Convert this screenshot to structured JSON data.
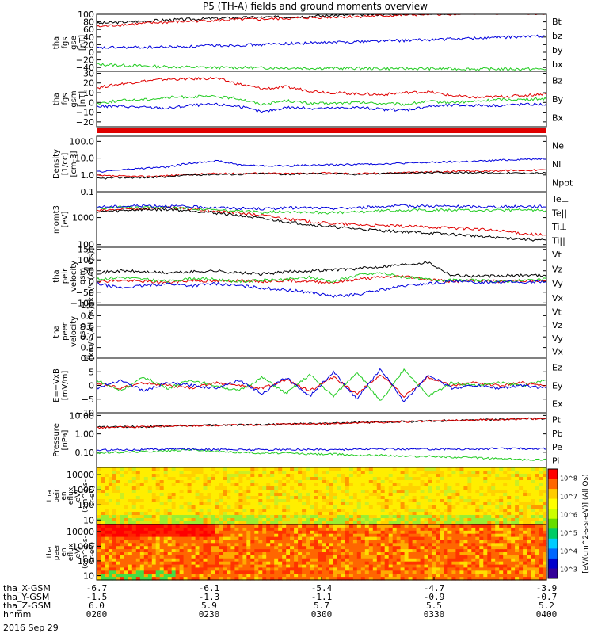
{
  "chart_data": {
    "type": "line",
    "title": "P5 (TH-A) fields and ground moments overview",
    "date": "2016 Sep 29",
    "colors": {
      "black": "#000000",
      "red": "#e00000",
      "green": "#22cc22",
      "blue": "#0000dd"
    },
    "panels": [
      {
        "id": "fgs_gse",
        "ylabel": [
          "tha",
          "fgs",
          "gse",
          "[nT]"
        ],
        "ylim": [
          -50,
          100
        ],
        "scale": "linear",
        "yticks": [
          -40,
          -20,
          0,
          20,
          40,
          60,
          80,
          100
        ],
        "yticklabels": [
          "−40",
          "−20",
          "0",
          "20",
          "40",
          "60",
          "80",
          "100"
        ],
        "series": [
          {
            "name": "Bt",
            "color": "black",
            "values": [
              76,
              79,
              82,
              85,
              87,
              89,
              91,
              92,
              93,
              95,
              97,
              99,
              100,
              101,
              102,
              103,
              104,
              105,
              106,
              106
            ]
          },
          {
            "name": "bz",
            "color": "red",
            "values": [
              67,
              72,
              76,
              79,
              82,
              84,
              86,
              87,
              89,
              91,
              93,
              94,
              96,
              98,
              100,
              101,
              102,
              102,
              102,
              102
            ]
          },
          {
            "name": "by",
            "color": "green",
            "values": [
              -32,
              -34,
              -36,
              -38,
              -39,
              -40,
              -40,
              -41,
              -41,
              -42,
              -42,
              -42,
              -43,
              -43,
              -43,
              -43,
              -44,
              -44,
              -44,
              -44
            ]
          },
          {
            "name": "bx",
            "color": "blue",
            "values": [
              11,
              13,
              13,
              14,
              15,
              18,
              19,
              20,
              23,
              24,
              26,
              28,
              30,
              31,
              33,
              35,
              37,
              39,
              41,
              43
            ]
          }
        ]
      },
      {
        "id": "fgs_gsm",
        "ylabel": [
          "tha",
          "fgs",
          "gsm",
          "[nT]"
        ],
        "ylim": [
          -25,
          32
        ],
        "scale": "linear",
        "yticks": [
          -20,
          -10,
          0,
          10,
          20,
          30
        ],
        "yticklabels": [
          "−20",
          "−10",
          "0",
          "10",
          "20",
          "30"
        ],
        "series": [
          {
            "name": "Bz",
            "color": "red",
            "values": [
              15,
              19,
              22,
              24,
              24,
              25,
              19,
              14,
              16,
              12,
              10,
              9,
              8,
              10,
              11,
              7,
              5,
              6,
              7,
              9
            ]
          },
          {
            "name": "By",
            "color": "green",
            "values": [
              -1,
              2,
              3,
              5,
              6,
              6,
              4,
              -2,
              2,
              -1,
              -1,
              0,
              -1,
              -2,
              1,
              0,
              1,
              3,
              3,
              4
            ]
          },
          {
            "name": "Bx",
            "color": "blue",
            "values": [
              -4,
              -4,
              -5,
              -6,
              -3,
              -2,
              -4,
              -10,
              -5,
              -6,
              -6,
              -5,
              -7,
              -8,
              -4,
              -3,
              -3,
              -3,
              -2,
              -2
            ]
          }
        ]
      },
      {
        "id": "density",
        "ylabel": [
          "Density",
          "[1/cc]",
          "[cm-3]"
        ],
        "ylim": [
          0.1,
          200
        ],
        "scale": "log",
        "yticks": [
          0.1,
          1,
          10,
          100
        ],
        "yticklabels": [
          "0.1",
          "1.0",
          "10.0",
          "100.0"
        ],
        "series": [
          {
            "name": "Ne",
            "color": "red",
            "values": [
              0.9,
              0.85,
              0.8,
              0.9,
              1.1,
              1.2,
              1.2,
              1.3,
              1.2,
              1.3,
              1.3,
              1.2,
              1.3,
              1.4,
              1.5,
              1.6,
              1.7,
              1.8,
              1.9,
              2.0
            ]
          },
          {
            "name": "Ni",
            "color": "black",
            "values": [
              0.6,
              0.7,
              0.7,
              0.8,
              1.0,
              1.1,
              1.1,
              1.2,
              1.1,
              1.2,
              1.2,
              1.1,
              1.2,
              1.3,
              1.4,
              1.4,
              1.4,
              1.3,
              1.3,
              1.3
            ]
          },
          {
            "name": "Npot",
            "color": "blue",
            "values": [
              1.5,
              2.0,
              2.5,
              3.0,
              5,
              7,
              4,
              3.5,
              3.5,
              3.8,
              4,
              4.3,
              4.6,
              5,
              5.5,
              6,
              6.5,
              7.5,
              8.5,
              9.5
            ]
          }
        ]
      },
      {
        "id": "mom_temp",
        "ylabel": [
          "momt3",
          "[eV]"
        ],
        "ylim": [
          80,
          9000
        ],
        "scale": "log",
        "yticks": [
          100,
          1000
        ],
        "yticklabels": [
          "100",
          "1000"
        ],
        "series": [
          {
            "name": "Te⊥",
            "color": "red",
            "values": [
              1800,
              2000,
              2200,
              2300,
              2100,
              1700,
              1500,
              1200,
              900,
              700,
              600,
              550,
              500,
              480,
              450,
              420,
              380,
              320,
              260,
              220
            ]
          },
          {
            "name": "Te||",
            "color": "black",
            "values": [
              1600,
              1800,
              2000,
              2000,
              1800,
              1500,
              1200,
              900,
              700,
              550,
              450,
              380,
              330,
              300,
              270,
              240,
              210,
              180,
              160,
              140
            ]
          },
          {
            "name": "Ti⊥",
            "color": "green",
            "values": [
              2300,
              2400,
              2500,
              2400,
              2200,
              1900,
              1700,
              1600,
              1700,
              1600,
              1500,
              1600,
              1800,
              1900,
              1900,
              1900,
              1850,
              1850,
              1900,
              1900
            ]
          },
          {
            "name": "Ti||",
            "color": "blue",
            "values": [
              2500,
              2600,
              2800,
              2700,
              2500,
              2400,
              2200,
              2100,
              2300,
              2300,
              2200,
              2300,
              2600,
              2700,
              2700,
              2600,
              2500,
              2500,
              2600,
              2600
            ]
          }
        ]
      },
      {
        "id": "peir_velocity",
        "ylabel": [
          "tha",
          "peir",
          "velocity",
          "gsm",
          "[km/s (All Qs)]"
        ],
        "ylim": [
          -110,
          160
        ],
        "scale": "linear",
        "yticks": [
          -100,
          -50,
          0,
          50,
          100,
          150
        ],
        "yticklabels": [
          "−100",
          "−50",
          "0",
          "50",
          "100",
          "150"
        ],
        "series": [
          {
            "name": "Vt",
            "color": "black",
            "values": [
              40,
              50,
              45,
              40,
              45,
              50,
              40,
              35,
              45,
              50,
              55,
              60,
              70,
              80,
              90,
              30,
              25,
              25,
              30,
              30
            ]
          },
          {
            "name": "Vz",
            "color": "red",
            "values": [
              0,
              5,
              0,
              -5,
              5,
              0,
              5,
              0,
              5,
              0,
              -5,
              10,
              20,
              25,
              10,
              0,
              5,
              0,
              5,
              0
            ]
          },
          {
            "name": "Vy",
            "color": "green",
            "values": [
              10,
              20,
              10,
              0,
              15,
              10,
              0,
              5,
              10,
              20,
              0,
              30,
              40,
              20,
              10,
              5,
              5,
              0,
              5,
              10
            ]
          },
          {
            "name": "Vx",
            "color": "blue",
            "values": [
              -10,
              -30,
              -20,
              -10,
              -20,
              -10,
              -20,
              -30,
              -40,
              -50,
              -70,
              -60,
              -40,
              -20,
              -10,
              0,
              -5,
              0,
              -5,
              0
            ]
          }
        ]
      },
      {
        "id": "peer_velocity",
        "ylabel": [
          "tha",
          "peer",
          "velocity",
          "gsm",
          "[km/s (All Qs)]"
        ],
        "ylim": [
          0,
          1
        ],
        "scale": "linear",
        "yticks": [
          0,
          0.2,
          0.4,
          0.6,
          0.8,
          1.0
        ],
        "yticklabels": [
          "0.0",
          "0.2",
          "0.4",
          "0.6",
          "0.8",
          "1.0"
        ],
        "series": [
          {
            "name": "Vt",
            "color": "black",
            "values": []
          },
          {
            "name": "Vz",
            "color": "red",
            "values": []
          },
          {
            "name": "Vy",
            "color": "green",
            "values": []
          },
          {
            "name": "Vx",
            "color": "blue",
            "values": []
          }
        ]
      },
      {
        "id": "efield",
        "ylabel": [
          "E=−VxB",
          "[mV/m]"
        ],
        "ylim": [
          -10,
          10
        ],
        "scale": "linear",
        "yticks": [
          -10,
          -5,
          0,
          5,
          10
        ],
        "yticklabels": [
          "−10",
          "−5",
          "0",
          "5",
          "10"
        ],
        "series": [
          {
            "name": "Ez",
            "color": "red",
            "values": [
              1,
              -1,
              1,
              0,
              -1,
              1,
              0,
              -1,
              2,
              -2,
              3,
              -3,
              4,
              -4,
              3,
              0,
              1,
              0,
              1,
              0
            ]
          },
          {
            "name": "Ey",
            "color": "green",
            "values": [
              2,
              -2,
              3,
              -1,
              2,
              0,
              -2,
              3,
              -3,
              4,
              -4,
              5,
              -6,
              6,
              -4,
              1,
              0,
              1,
              0,
              2
            ]
          },
          {
            "name": "Ex",
            "color": "blue",
            "values": [
              -1,
              2,
              -2,
              1,
              0,
              -1,
              2,
              -3,
              3,
              -4,
              5,
              -5,
              6,
              -6,
              4,
              -1,
              0,
              -1,
              0,
              -1
            ]
          }
        ]
      },
      {
        "id": "pressure",
        "ylabel": [
          "Pressure",
          "[nPa]"
        ],
        "ylim": [
          0.015,
          14
        ],
        "scale": "log",
        "yticks": [
          0.1,
          1,
          10
        ],
        "yticklabels": [
          "0.10",
          "1.00",
          "10.00"
        ],
        "series": [
          {
            "name": "Pt",
            "color": "black",
            "values": [
              2.3,
              2.4,
              2.5,
              2.7,
              2.9,
              3.0,
              3.1,
              3.2,
              3.4,
              3.6,
              3.8,
              4.1,
              4.4,
              4.7,
              5.0,
              5.4,
              5.8,
              6.2,
              6.6,
              7.0
            ]
          },
          {
            "name": "Pb",
            "color": "red",
            "values": [
              2.2,
              2.3,
              2.4,
              2.6,
              2.8,
              2.9,
              3.0,
              3.1,
              3.3,
              3.5,
              3.7,
              4.0,
              4.3,
              4.6,
              4.9,
              5.3,
              5.7,
              6.1,
              6.5,
              6.9
            ]
          },
          {
            "name": "Pe",
            "color": "green",
            "values": [
              0.09,
              0.1,
              0.11,
              0.12,
              0.14,
              0.11,
              0.1,
              0.09,
              0.09,
              0.08,
              0.08,
              0.07,
              0.07,
              0.06,
              0.06,
              0.055,
              0.05,
              0.045,
              0.04,
              0.04
            ]
          },
          {
            "name": "Pi",
            "color": "blue",
            "values": [
              0.13,
              0.14,
              0.14,
              0.15,
              0.15,
              0.14,
              0.14,
              0.14,
              0.14,
              0.14,
              0.14,
              0.15,
              0.15,
              0.15,
              0.15,
              0.15,
              0.15,
              0.16,
              0.16,
              0.16
            ]
          }
        ]
      }
    ],
    "spectrograms": [
      {
        "id": "peir_spec",
        "ylabel": [
          "tha",
          "peir",
          "en",
          "eflux",
          "eV/",
          "(cm^2-s-",
          "sr-eV)"
        ],
        "ylim": [
          5,
          30000
        ],
        "yticks": [
          10,
          100,
          1000,
          10000
        ],
        "yticklabels": [
          "10",
          "100",
          "1000",
          "10000"
        ]
      },
      {
        "id": "peer_spec",
        "ylabel": [
          "tha",
          "peer",
          "en",
          "eflux",
          "eV/",
          "(cm^2-s-",
          "sr-eV)"
        ],
        "ylim": [
          5,
          30000
        ],
        "yticks": [
          10,
          100,
          1000,
          10000
        ],
        "yticklabels": [
          "10",
          "100",
          "1000",
          "10000"
        ]
      }
    ],
    "colorbar": {
      "title": "[eV/(cm^2-s-sr-eV)] (All Qs)",
      "ticklabels": [
        "10^3",
        "10^4",
        "10^5",
        "10^6",
        "10^7",
        "10^8"
      ]
    },
    "x_axis": {
      "rows": [
        {
          "label": "tha_X-GSM",
          "values": [
            "-6.7",
            "-6.1",
            "-5.4",
            "-4.7",
            "-3.9"
          ]
        },
        {
          "label": "tha_Y-GSM",
          "values": [
            "-1.5",
            "-1.3",
            "-1.1",
            "-0.9",
            "-0.7"
          ]
        },
        {
          "label": "tha_Z-GSM",
          "values": [
            "6.0",
            "5.9",
            "5.7",
            "5.5",
            "5.2"
          ]
        },
        {
          "label": "hhmm",
          "values": [
            "0200",
            "0230",
            "0300",
            "0330",
            "0400"
          ]
        }
      ]
    }
  }
}
